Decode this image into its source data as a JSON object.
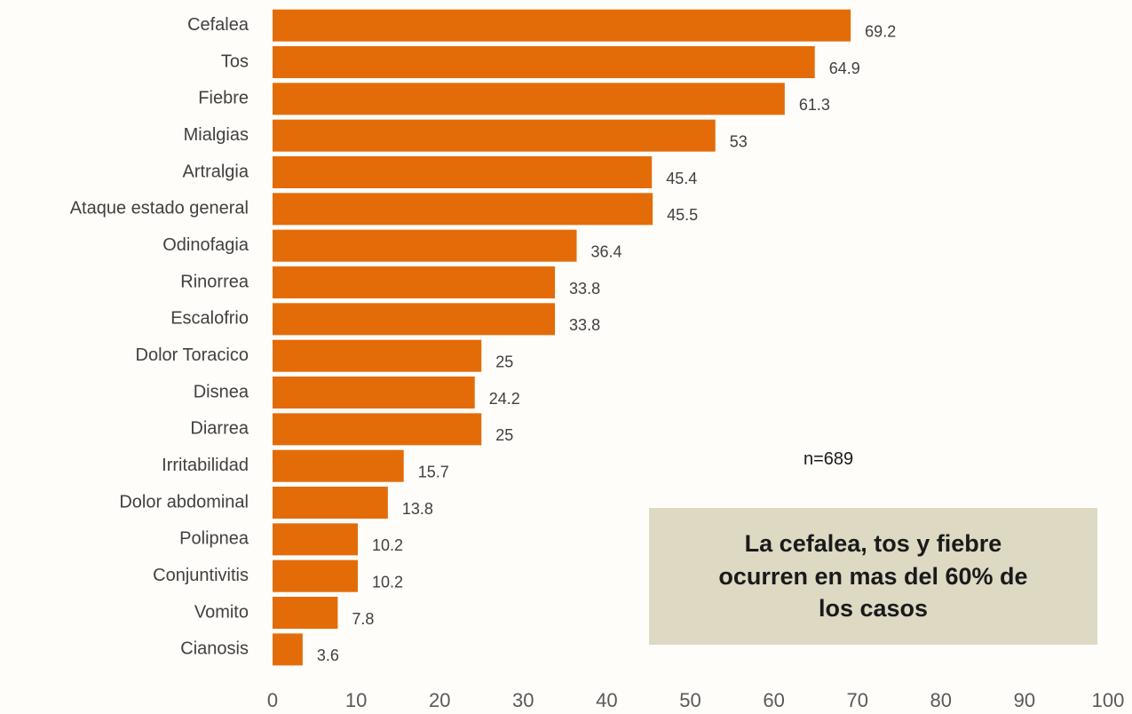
{
  "chart_data": {
    "type": "bar",
    "orientation": "horizontal",
    "color": "#e36c09",
    "categories": [
      "Cefalea",
      "Tos",
      "Fiebre",
      "Mialgias",
      "Artralgia",
      "Ataque estado general",
      "Odinofagia",
      "Rinorrea",
      "Escalofrio",
      "Dolor Toracico",
      "Disnea",
      "Diarrea",
      "Irritabilidad",
      "Dolor abdominal",
      "Polipnea",
      "Conjuntivitis",
      "Vomito",
      "Cianosis"
    ],
    "values": [
      69.2,
      64.9,
      61.3,
      53,
      45.4,
      45.5,
      36.4,
      33.8,
      33.8,
      25,
      24.2,
      25,
      15.7,
      13.8,
      10.2,
      10.2,
      7.8,
      3.6
    ],
    "xlim": [
      0,
      100
    ],
    "xticks": [
      0,
      10,
      20,
      30,
      40,
      50,
      60,
      70,
      80,
      90,
      100
    ],
    "grid": false,
    "sample_note": "n=689",
    "callout": "La cefalea, tos y fiebre ocurren en mas del 60% de los casos"
  }
}
